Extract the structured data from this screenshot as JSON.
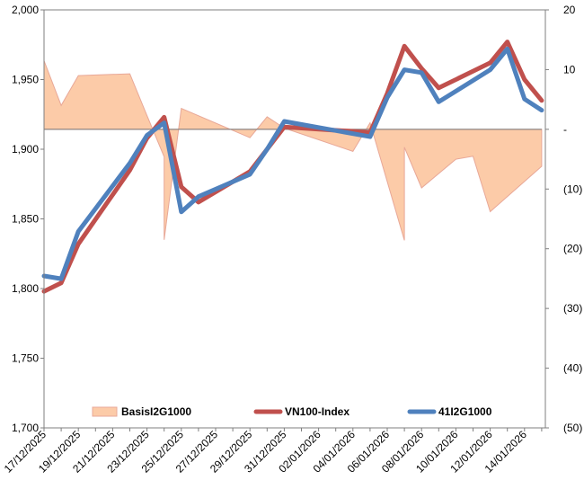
{
  "chart_data": {
    "type": "line",
    "x": [
      "17/12/2025",
      "18/12/2025",
      "19/12/2025",
      "22/12/2025",
      "23/12/2025",
      "24/12/2025",
      "25/12/2025",
      "26/12/2025",
      "29/12/2025",
      "30/12/2025",
      "31/12/2025",
      "05/01/2026",
      "06/01/2026",
      "07/01/2026",
      "08/01/2026",
      "09/01/2026",
      "12/01/2026",
      "13/01/2026",
      "14/01/2026",
      "15/01/2026"
    ],
    "x_tick_labels": [
      "17/12/2025",
      "19/12/2025",
      "21/12/2025",
      "23/12/2025",
      "25/12/2025",
      "27/12/2025",
      "29/12/2025",
      "31/12/2025",
      "02/01/2026",
      "04/01/2026",
      "06/01/2026",
      "08/01/2026",
      "10/01/2026",
      "12/01/2026",
      "14/01/2026"
    ],
    "y_left": {
      "min": 1700,
      "max": 2000,
      "step": 50,
      "tick_labels": [
        "1,700",
        "1,750",
        "1,800",
        "1,850",
        "1,900",
        "1,950",
        "2,000"
      ]
    },
    "y_right": {
      "min": -50,
      "max": 20,
      "step": 10,
      "tick_labels": [
        "(50)",
        "(40)",
        "(30)",
        "(20)",
        "(10)",
        "-",
        "10",
        "20"
      ]
    },
    "series": [
      {
        "name": "BasisI2G1000",
        "kind": "area",
        "axis": "right",
        "color": "#FCCBA8",
        "edge_color": "#E8A898",
        "values": [
          [
            "17/12/2025",
            11.5
          ],
          [
            "18/12/2025",
            4
          ],
          [
            "19/12/2025",
            9
          ],
          [
            "22/12/2025",
            9.3
          ],
          [
            "23/12/2025",
            2.3
          ],
          [
            "24/12/2025",
            -4.6
          ],
          [
            "24/12/2025",
            -18.5
          ],
          [
            "25/12/2025",
            3.5
          ],
          [
            "29/12/2025",
            -1.4
          ],
          [
            "30/12/2025",
            2.1
          ],
          [
            "31/12/2025",
            0.2
          ],
          [
            "04/01/2026",
            -3.7
          ],
          [
            "05/01/2026",
            1.1
          ],
          [
            "07/01/2026",
            -18.6
          ],
          [
            "07/01/2026",
            -3
          ],
          [
            "08/01/2026",
            -9.8
          ],
          [
            "10/01/2026",
            -5
          ],
          [
            "11/01/2026",
            -4.5
          ],
          [
            "12/01/2026",
            -13.8
          ],
          [
            "15/01/2026",
            -6.2
          ]
        ]
      },
      {
        "name": "VN100-Index",
        "kind": "line",
        "axis": "left",
        "color": "#C0504D",
        "values": [
          [
            "17/12/2025",
            1798
          ],
          [
            "18/12/2025",
            1804
          ],
          [
            "19/12/2025",
            1832
          ],
          [
            "22/12/2025",
            1885
          ],
          [
            "23/12/2025",
            1908
          ],
          [
            "24/12/2025",
            1923
          ],
          [
            "25/12/2025",
            1873
          ],
          [
            "26/12/2025",
            1862
          ],
          [
            "29/12/2025",
            1884
          ],
          [
            "30/12/2025",
            1900
          ],
          [
            "31/12/2025",
            1916
          ],
          [
            "05/01/2026",
            1912
          ],
          [
            "06/01/2026",
            1940
          ],
          [
            "07/01/2026",
            1974
          ],
          [
            "08/01/2026",
            1958
          ],
          [
            "09/01/2026",
            1944
          ],
          [
            "12/01/2026",
            1962
          ],
          [
            "13/01/2026",
            1977
          ],
          [
            "14/01/2026",
            1950
          ],
          [
            "15/01/2026",
            1935
          ]
        ]
      },
      {
        "name": "41I2G1000",
        "kind": "line",
        "axis": "left",
        "color": "#4F81BD",
        "values": [
          [
            "17/12/2025",
            1809
          ],
          [
            "18/12/2025",
            1807
          ],
          [
            "19/12/2025",
            1841
          ],
          [
            "22/12/2025",
            1890
          ],
          [
            "23/12/2025",
            1910
          ],
          [
            "24/12/2025",
            1919
          ],
          [
            "25/12/2025",
            1855
          ],
          [
            "26/12/2025",
            1866
          ],
          [
            "29/12/2025",
            1882
          ],
          [
            "30/12/2025",
            1900
          ],
          [
            "31/12/2025",
            1920
          ],
          [
            "05/01/2026",
            1909
          ],
          [
            "06/01/2026",
            1937
          ],
          [
            "07/01/2026",
            1957
          ],
          [
            "08/01/2026",
            1955
          ],
          [
            "09/01/2026",
            1934
          ],
          [
            "12/01/2026",
            1957
          ],
          [
            "13/01/2026",
            1972
          ],
          [
            "14/01/2026",
            1936
          ],
          [
            "15/01/2026",
            1928
          ]
        ]
      }
    ],
    "legend": {
      "placement": "bottom",
      "entries": [
        "BasisI2G1000",
        "VN100-Index",
        "41I2G1000"
      ]
    },
    "grid": false
  }
}
